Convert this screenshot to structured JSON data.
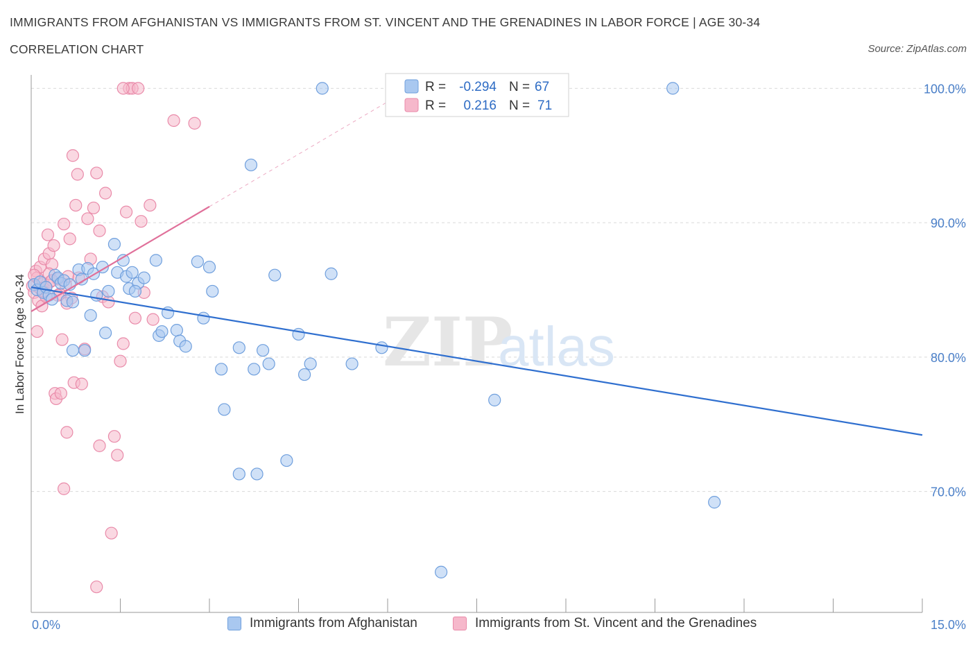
{
  "header": {
    "title": "IMMIGRANTS FROM AFGHANISTAN VS IMMIGRANTS FROM ST. VINCENT AND THE GRENADINES IN LABOR FORCE | AGE 30-34",
    "subtitle": "CORRELATION CHART",
    "source": "Source: ZipAtlas.com"
  },
  "watermark": {
    "zip": "ZIP",
    "atlas": "atlas"
  },
  "colors": {
    "blue_fill": "#a9c8f0",
    "blue_stroke": "#6f9fdd",
    "blue_line": "#2f6fcf",
    "pink_fill": "#f6b8cb",
    "pink_stroke": "#e98aa9",
    "pink_line": "#e0709a",
    "tick_text": "#4a7fc8",
    "grid": "#d9d9d9"
  },
  "legend": {
    "rows": [
      {
        "r_label": "R =",
        "r_value": "-0.294",
        "n_label": "N =",
        "n_value": "67"
      },
      {
        "r_label": "R =",
        "r_value": "0.216",
        "n_label": "N =",
        "n_value": "71"
      }
    ]
  },
  "chart_data": {
    "type": "scatter",
    "xlabel": "",
    "ylabel": "In Labor Force | Age 30-34",
    "x_tick_labels": [
      "0.0%",
      "15.0%"
    ],
    "y_tick_labels": [
      "100.0%",
      "90.0%",
      "80.0%",
      "70.0%"
    ],
    "y_ticks": [
      100,
      90,
      80,
      70
    ],
    "xlim": [
      0,
      15
    ],
    "ylim": [
      61,
      101
    ],
    "grid": true,
    "series": [
      {
        "name": "Immigrants from Afghanistan",
        "color": "#a9c8f0",
        "r": -0.294,
        "n": 67,
        "trend": {
          "x": [
            0.0,
            15.0
          ],
          "y": [
            85.2,
            74.2
          ]
        },
        "points": [
          [
            0.05,
            85.4
          ],
          [
            0.1,
            85.0
          ],
          [
            0.15,
            85.6
          ],
          [
            0.2,
            84.8
          ],
          [
            0.25,
            85.2
          ],
          [
            0.3,
            84.6
          ],
          [
            0.35,
            84.3
          ],
          [
            0.4,
            86.1
          ],
          [
            0.45,
            85.9
          ],
          [
            0.5,
            85.5
          ],
          [
            0.55,
            85.7
          ],
          [
            0.6,
            84.2
          ],
          [
            0.65,
            85.4
          ],
          [
            0.7,
            84.1
          ],
          [
            0.8,
            86.5
          ],
          [
            0.85,
            85.8
          ],
          [
            0.95,
            86.6
          ],
          [
            1.0,
            83.1
          ],
          [
            1.05,
            86.2
          ],
          [
            1.1,
            84.6
          ],
          [
            1.2,
            86.7
          ],
          [
            1.25,
            81.8
          ],
          [
            1.3,
            84.9
          ],
          [
            1.4,
            88.4
          ],
          [
            1.45,
            86.3
          ],
          [
            1.55,
            87.2
          ],
          [
            1.6,
            86.0
          ],
          [
            1.65,
            85.1
          ],
          [
            1.7,
            86.3
          ],
          [
            1.8,
            85.5
          ],
          [
            1.9,
            85.9
          ],
          [
            2.1,
            87.2
          ],
          [
            2.15,
            81.6
          ],
          [
            2.3,
            83.3
          ],
          [
            2.45,
            82.0
          ],
          [
            2.5,
            81.2
          ],
          [
            2.6,
            80.8
          ],
          [
            2.8,
            87.1
          ],
          [
            2.9,
            82.9
          ],
          [
            3.0,
            86.7
          ],
          [
            3.05,
            84.9
          ],
          [
            3.2,
            79.1
          ],
          [
            3.25,
            76.1
          ],
          [
            3.5,
            80.7
          ],
          [
            3.5,
            71.3
          ],
          [
            3.75,
            79.1
          ],
          [
            3.8,
            71.3
          ],
          [
            3.9,
            80.5
          ],
          [
            4.0,
            79.5
          ],
          [
            4.1,
            86.1
          ],
          [
            4.3,
            72.3
          ],
          [
            4.5,
            81.7
          ],
          [
            4.6,
            78.7
          ],
          [
            4.7,
            79.5
          ],
          [
            4.9,
            100.0
          ],
          [
            5.05,
            86.2
          ],
          [
            5.4,
            79.5
          ],
          [
            5.9,
            80.7
          ],
          [
            3.7,
            94.3
          ],
          [
            7.8,
            76.8
          ],
          [
            10.8,
            100.0
          ],
          [
            11.5,
            69.2
          ],
          [
            6.9,
            64.0
          ],
          [
            0.7,
            80.5
          ],
          [
            2.2,
            81.9
          ],
          [
            0.9,
            80.5
          ],
          [
            1.75,
            84.9
          ]
        ]
      },
      {
        "name": "Immigrants from St. Vincent and the Grenadines",
        "color": "#f6b8cb",
        "r": 0.216,
        "n": 71,
        "trend": {
          "x": [
            0.0,
            3.0
          ],
          "y": [
            83.4,
            91.2
          ]
        },
        "trend_extension": {
          "x": [
            3.0,
            6.0
          ],
          "y": [
            91.2,
            99.0
          ]
        },
        "points": [
          [
            0.02,
            85.3
          ],
          [
            0.05,
            84.8
          ],
          [
            0.08,
            86.4
          ],
          [
            0.1,
            85.9
          ],
          [
            0.12,
            84.2
          ],
          [
            0.15,
            86.7
          ],
          [
            0.18,
            83.8
          ],
          [
            0.2,
            85.5
          ],
          [
            0.22,
            87.3
          ],
          [
            0.25,
            84.5
          ],
          [
            0.28,
            89.1
          ],
          [
            0.3,
            87.7
          ],
          [
            0.32,
            85.6
          ],
          [
            0.35,
            86.9
          ],
          [
            0.38,
            88.3
          ],
          [
            0.4,
            77.3
          ],
          [
            0.42,
            76.9
          ],
          [
            0.45,
            85.8
          ],
          [
            0.48,
            84.7
          ],
          [
            0.5,
            77.3
          ],
          [
            0.52,
            81.3
          ],
          [
            0.55,
            89.9
          ],
          [
            0.58,
            85.4
          ],
          [
            0.6,
            74.4
          ],
          [
            0.62,
            86.0
          ],
          [
            0.65,
            88.8
          ],
          [
            0.68,
            84.4
          ],
          [
            0.7,
            95.0
          ],
          [
            0.72,
            78.1
          ],
          [
            0.75,
            91.3
          ],
          [
            0.78,
            93.6
          ],
          [
            0.8,
            85.9
          ],
          [
            0.85,
            78.0
          ],
          [
            0.9,
            80.6
          ],
          [
            0.95,
            90.3
          ],
          [
            1.0,
            87.3
          ],
          [
            1.05,
            91.1
          ],
          [
            1.1,
            93.7
          ],
          [
            1.15,
            89.4
          ],
          [
            1.2,
            84.5
          ],
          [
            1.25,
            92.2
          ],
          [
            1.3,
            84.1
          ],
          [
            1.35,
            66.9
          ],
          [
            1.4,
            74.1
          ],
          [
            1.45,
            72.7
          ],
          [
            1.5,
            79.7
          ],
          [
            1.55,
            81.0
          ],
          [
            1.6,
            90.8
          ],
          [
            1.65,
            100.0
          ],
          [
            1.7,
            100.0
          ],
          [
            1.75,
            82.9
          ],
          [
            1.8,
            100.0
          ],
          [
            1.85,
            90.1
          ],
          [
            1.9,
            84.8
          ],
          [
            2.0,
            91.3
          ],
          [
            2.05,
            82.8
          ],
          [
            1.55,
            100.0
          ],
          [
            2.4,
            97.6
          ],
          [
            2.75,
            97.4
          ],
          [
            1.15,
            73.4
          ],
          [
            0.55,
            70.2
          ],
          [
            1.1,
            62.9
          ],
          [
            0.1,
            81.9
          ],
          [
            0.3,
            86.2
          ],
          [
            0.2,
            84.9
          ],
          [
            0.15,
            85.1
          ],
          [
            0.35,
            85.7
          ],
          [
            0.45,
            84.6
          ],
          [
            0.25,
            85.2
          ],
          [
            0.05,
            86.1
          ],
          [
            0.6,
            84.0
          ]
        ]
      }
    ]
  },
  "bottom_legend": [
    {
      "label": "Immigrants from Afghanistan"
    },
    {
      "label": "Immigrants from St. Vincent and the Grenadines"
    }
  ]
}
